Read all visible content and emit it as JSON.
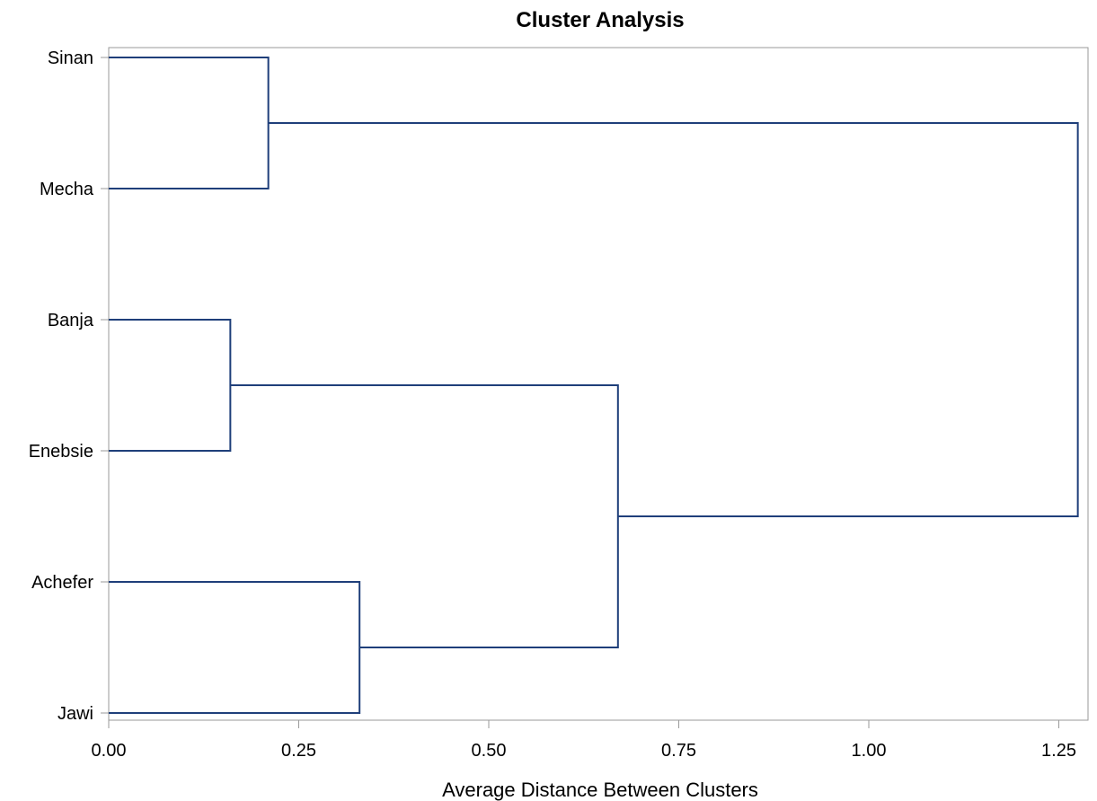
{
  "chart_data": {
    "type": "dendrogram",
    "title": "Cluster Analysis",
    "xlabel": "Average Distance Between Clusters",
    "ylabel": "",
    "xlim": [
      0,
      1.28
    ],
    "xticks": [
      "0.00",
      "0.25",
      "0.50",
      "0.75",
      "1.00",
      "1.25"
    ],
    "leaves": [
      "Sinan",
      "Mecha",
      "Banja",
      "Enebsie",
      "Achefer",
      "Jawi"
    ],
    "merges": [
      {
        "left": "Banja",
        "right": "Enebsie",
        "height": 0.16
      },
      {
        "left": "Sinan",
        "right": "Mecha",
        "height": 0.21
      },
      {
        "left": "Achefer",
        "right": "Jawi",
        "height": 0.33
      },
      {
        "left": "Banja+Enebsie",
        "right": "Achefer+Jawi",
        "height": 0.67
      },
      {
        "left": "Sinan+Mecha",
        "right": "Banja+Enebsie+Achefer+Jawi",
        "height": 1.275
      }
    ],
    "line_color": "#1f3f7a",
    "frame_color": "#9a9a9a",
    "grid": false,
    "legend": "none"
  }
}
